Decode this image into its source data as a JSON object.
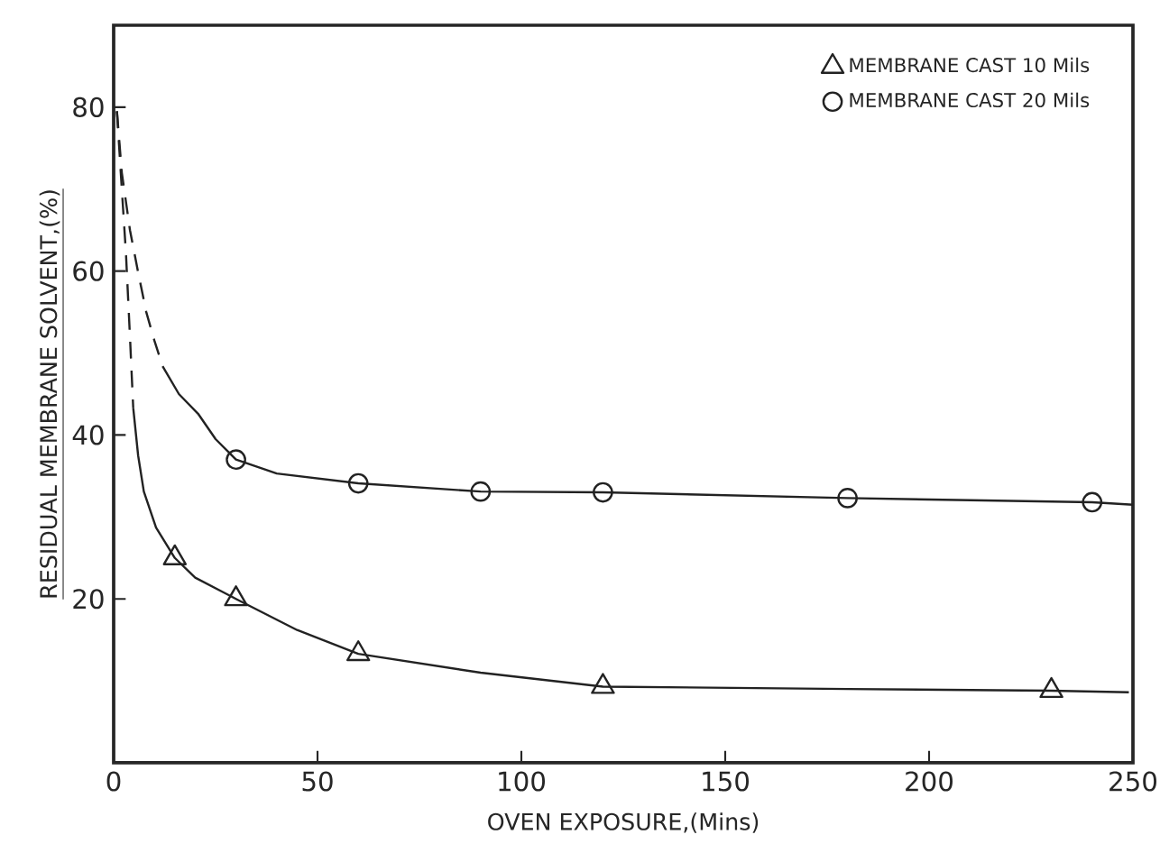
{
  "chart_data": {
    "type": "scatter",
    "xlabel": "OVEN EXPOSURE,(Mins)",
    "ylabel": "RESIDUAL MEMBRANE SOLVENT,(%)",
    "xlim": [
      0,
      250
    ],
    "xticks": [
      0,
      50,
      100,
      150,
      200,
      250
    ],
    "ylim": [
      0,
      90
    ],
    "yticks": [
      20,
      40,
      60,
      80
    ],
    "grid": false,
    "legend": "top right",
    "series": [
      {
        "type": "line",
        "color": "#222222",
        "marker": "none",
        "line_style": "dashed",
        "x": [
          0.8,
          2,
          3,
          4,
          4.8
        ],
        "values": [
          79.5,
          70,
          62.3,
          52,
          43.3
        ]
      },
      {
        "type": "line",
        "color": "#222222",
        "marker": "none",
        "line_style": "solid",
        "x": [
          4.8,
          6,
          7.4,
          10.4,
          15,
          20,
          30,
          45,
          60,
          90,
          120,
          180,
          230,
          249
        ],
        "values": [
          43.3,
          37.5,
          33.1,
          28.7,
          25,
          22.6,
          20,
          16.2,
          13.3,
          11,
          9.3,
          9,
          8.8,
          8.6
        ]
      },
      {
        "type": "line",
        "color": "#222222",
        "marker": "none",
        "line_style": "dashed",
        "x": [
          0.8,
          2,
          4,
          5.9,
          8,
          10,
          12
        ],
        "values": [
          79.5,
          72,
          65,
          60.1,
          55,
          51.5,
          48.4
        ]
      },
      {
        "type": "line",
        "color": "#222222",
        "marker": "none",
        "line_style": "solid",
        "x": [
          12,
          16,
          20.7,
          25,
          30,
          40,
          60,
          90,
          120,
          180,
          240,
          250
        ],
        "values": [
          48.4,
          45,
          42.6,
          39.5,
          37,
          35.3,
          34.1,
          33.1,
          33,
          32.3,
          31.8,
          31.5
        ]
      },
      {
        "name": "MEMBRANE CAST 10 Mils",
        "color": "#222222",
        "marker": "triangle",
        "x": [
          15,
          30,
          60,
          120,
          230
        ],
        "values": [
          25,
          20,
          13.3,
          9.3,
          8.8
        ]
      },
      {
        "name": "MEMBRANE CAST 20 Mils",
        "color": "#222222",
        "marker": "circle",
        "x": [
          30,
          60,
          90,
          120,
          180,
          240
        ],
        "values": [
          37,
          34.1,
          33.1,
          33,
          32.3,
          31.8
        ]
      }
    ]
  }
}
